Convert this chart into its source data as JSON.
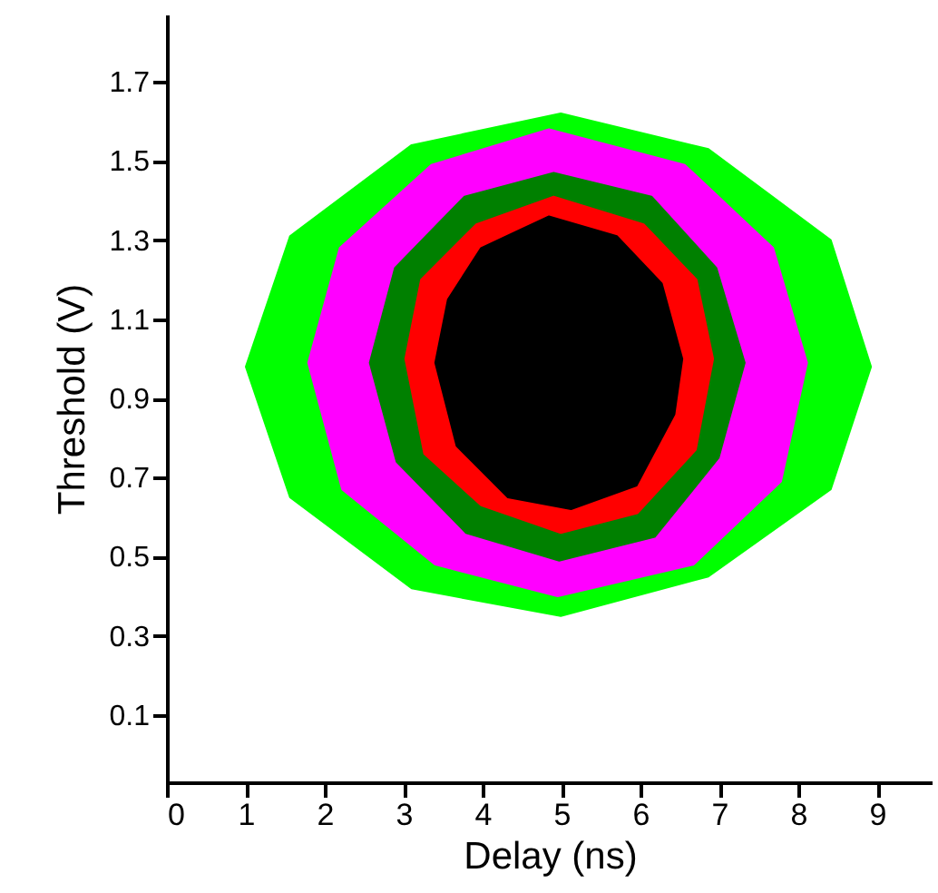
{
  "chart_data": {
    "type": "area",
    "xlabel": "Delay (ns)",
    "ylabel": "Threshold (V)",
    "xlim": [
      0,
      9.7
    ],
    "ylim": [
      -0.07,
      1.87
    ],
    "xticks": [
      0,
      1,
      2,
      3,
      4,
      5,
      6,
      7,
      8,
      9
    ],
    "yticks": [
      0.1,
      0.3,
      0.5,
      0.7,
      0.9,
      1.1,
      1.3,
      1.5,
      1.7
    ],
    "grid": false,
    "series": [
      {
        "color": "#00ff00",
        "x": [
          1.0,
          1.56,
          3.1,
          4.99,
          6.86,
          8.41,
          8.92,
          8.41,
          6.86,
          4.99,
          3.1,
          1.56
        ],
        "values": [
          0.98,
          1.31,
          1.54,
          1.62,
          1.53,
          1.3,
          0.98,
          0.67,
          0.45,
          0.35,
          0.42,
          0.65
        ]
      },
      {
        "color": "#ff00ff",
        "x": [
          1.79,
          2.19,
          3.35,
          4.84,
          6.56,
          7.68,
          8.11,
          7.78,
          6.67,
          4.95,
          3.4,
          2.22
        ],
        "values": [
          0.99,
          1.28,
          1.49,
          1.58,
          1.49,
          1.28,
          0.99,
          0.69,
          0.48,
          0.4,
          0.48,
          0.67
        ]
      },
      {
        "color": "#008000",
        "x": [
          2.57,
          2.89,
          3.77,
          4.9,
          6.14,
          6.96,
          7.32,
          6.99,
          6.18,
          4.97,
          3.79,
          2.91
        ],
        "values": [
          0.99,
          1.23,
          1.41,
          1.47,
          1.41,
          1.23,
          0.99,
          0.75,
          0.55,
          0.49,
          0.56,
          0.74
        ]
      },
      {
        "color": "#ff0000",
        "x": [
          3.02,
          3.22,
          3.92,
          4.9,
          6.04,
          6.71,
          6.92,
          6.7,
          5.96,
          4.99,
          3.98,
          3.26
        ],
        "values": [
          1.0,
          1.2,
          1.34,
          1.41,
          1.34,
          1.2,
          1.0,
          0.77,
          0.61,
          0.56,
          0.63,
          0.76
        ]
      },
      {
        "color": "#000000",
        "x": [
          3.4,
          3.56,
          3.98,
          4.84,
          5.7,
          6.27,
          6.53,
          6.43,
          5.95,
          5.12,
          4.32,
          3.67
        ],
        "values": [
          0.99,
          1.15,
          1.28,
          1.36,
          1.31,
          1.19,
          1.0,
          0.86,
          0.68,
          0.62,
          0.65,
          0.78
        ]
      }
    ]
  }
}
